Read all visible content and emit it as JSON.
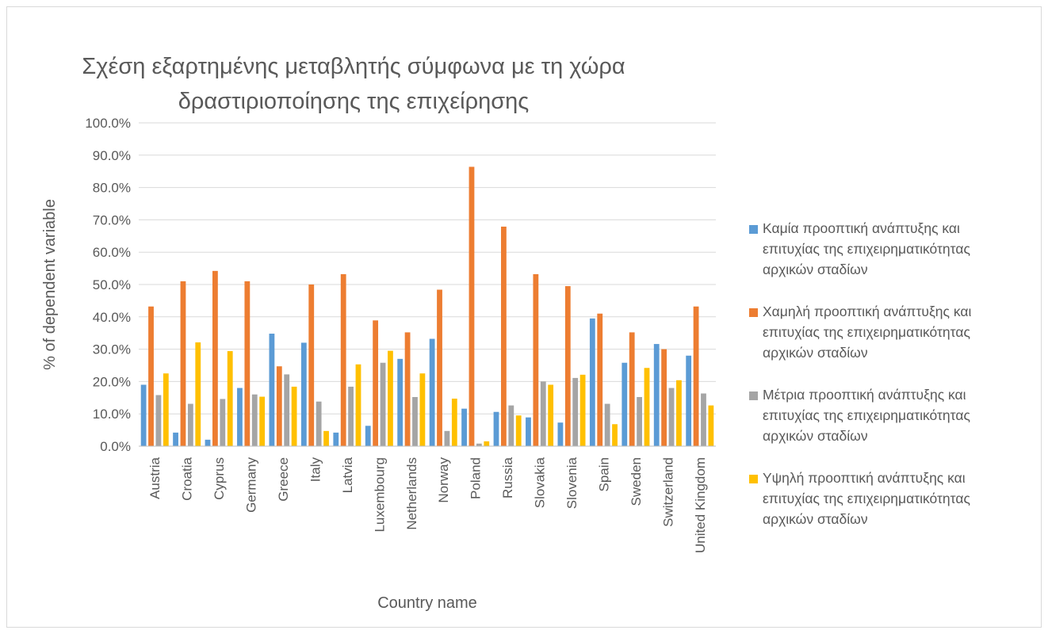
{
  "chart_data": {
    "type": "bar",
    "title_lines": [
      "Σχέση εξαρτημένης μεταβλητής σύμφωνα με τη χώρα",
      "δραστιριοποίησης της επιχείρησης"
    ],
    "xlabel": "Country name",
    "ylabel": "% of dependent variable",
    "ylim": [
      0,
      100
    ],
    "yticks": [
      "0.0%",
      "10.0%",
      "20.0%",
      "30.0%",
      "40.0%",
      "50.0%",
      "60.0%",
      "70.0%",
      "80.0%",
      "90.0%",
      "100.0%"
    ],
    "grid": true,
    "legend_position": "right",
    "categories": [
      "Austria",
      "Croatia",
      "Cyprus",
      "Germany",
      "Greece",
      "Italy",
      "Latvia",
      "Luxembourg",
      "Netherlands",
      "Norway",
      "Poland",
      "Russia",
      "Slovakia",
      "Slovenia",
      "Spain",
      "Sweden",
      "Switzerland",
      "United Kingdom"
    ],
    "series": [
      {
        "name_lines": [
          "Καμία προοπτική ανάπτυξης και",
          "επιτυχίας της επιχειρηματικότητας",
          "αρχικών σταδίων"
        ],
        "color": "#5b9bd5",
        "values": [
          19.0,
          4.2,
          2.0,
          18.0,
          34.8,
          32.0,
          4.2,
          6.3,
          27.0,
          33.2,
          11.6,
          10.6,
          8.9,
          7.3,
          39.5,
          25.8,
          31.6,
          28.0
        ]
      },
      {
        "name_lines": [
          "Χαμηλή προοπτική ανάπτυξης και",
          "επιτυχίας της επιχειρηματικότητας",
          "αρχικών σταδίων"
        ],
        "color": "#ed7d31",
        "values": [
          43.2,
          51.0,
          54.2,
          51.0,
          24.7,
          50.0,
          53.2,
          38.9,
          35.2,
          48.4,
          86.4,
          67.9,
          53.2,
          49.5,
          41.0,
          35.2,
          30.0,
          43.2
        ]
      },
      {
        "name_lines": [
          "Μέτρια προοπτική ανάπτυξης και",
          "επιτυχίας της επιχειρηματικότητας",
          "αρχικών σταδίων"
        ],
        "color": "#a5a5a5",
        "values": [
          15.8,
          13.1,
          14.6,
          16.0,
          22.2,
          13.8,
          18.4,
          25.8,
          15.2,
          4.7,
          0.8,
          12.6,
          20.0,
          21.1,
          13.1,
          15.2,
          18.0,
          16.3
        ]
      },
      {
        "name_lines": [
          "Υψηλή προοπτική ανάπτυξης και",
          "επιτυχίας της επιχειρηματικότητας",
          "αρχικών σταδίων"
        ],
        "color": "#ffc000",
        "values": [
          22.5,
          32.1,
          29.4,
          15.3,
          18.4,
          4.7,
          25.3,
          29.5,
          22.5,
          14.7,
          1.5,
          9.5,
          19.0,
          22.1,
          6.8,
          24.2,
          20.4,
          12.6
        ]
      }
    ]
  }
}
